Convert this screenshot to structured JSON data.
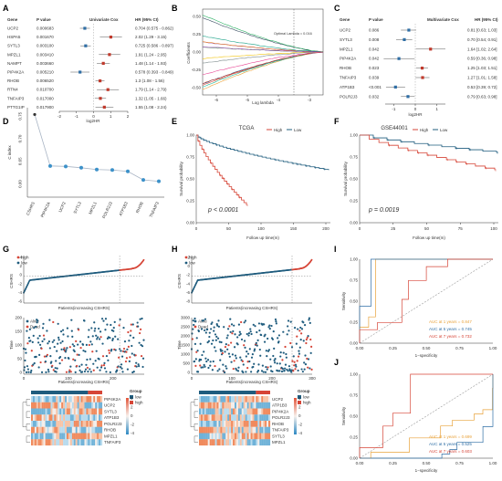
{
  "panels": {
    "A": {
      "letter": "A",
      "headers": [
        "Gene",
        "P value",
        "Univariate Cox",
        "HR (95% CI)"
      ],
      "xlabel": "log2HR",
      "xticks": [
        -2,
        -1,
        0,
        1,
        2
      ],
      "rows": [
        {
          "gene": "UCP2",
          "p": "0.000683",
          "hr": "0.704 (0.575 - 0.862)",
          "est": -0.51,
          "lo": -0.8,
          "hi": -0.21
        },
        {
          "gene": "HSPA5",
          "p": "0.001670",
          "hr": "2.02 (1.29 - 3.15)",
          "est": 1.01,
          "lo": 0.37,
          "hi": 1.66
        },
        {
          "gene": "SYTL3",
          "p": "0.003100",
          "hr": "0.725 (0.586 - 0.897)",
          "est": -0.46,
          "lo": -0.77,
          "hi": -0.16
        },
        {
          "gene": "MPZL1",
          "p": "0.003410",
          "hr": "1.91 (1.24 - 2.95)",
          "est": 0.93,
          "lo": 0.31,
          "hi": 1.56
        },
        {
          "gene": "NAMPT",
          "p": "0.003660",
          "hr": "1.48 (1.14 - 1.93)",
          "est": 0.57,
          "lo": 0.19,
          "hi": 0.95
        },
        {
          "gene": "PIP4K2A",
          "p": "0.005210",
          "hr": "0.578 (0.393 - 0.849)",
          "est": -0.79,
          "lo": -1.35,
          "hi": -0.24
        },
        {
          "gene": "RHOB",
          "p": "0.006520",
          "hr": "1.3 (1.08 - 1.56)",
          "est": 0.38,
          "lo": 0.11,
          "hi": 0.64
        },
        {
          "gene": "RTN4",
          "p": "0.010700",
          "hr": "1.79 (1.14 - 2.79)",
          "est": 0.84,
          "lo": 0.19,
          "hi": 1.48
        },
        {
          "gene": "TNFAIP3",
          "p": "0.017000",
          "hr": "1.32 (1.05 - 1.66)",
          "est": 0.4,
          "lo": 0.07,
          "hi": 0.73
        },
        {
          "gene": "PTTG1IP",
          "p": "0.017900",
          "hr": "1.55 (1.08 - 2.24)",
          "est": 0.63,
          "lo": 0.11,
          "hi": 1.16
        }
      ]
    },
    "B": {
      "letter": "B",
      "ylabel": "Coefficients",
      "xlabel": "Log lambda",
      "xticks": [
        -6,
        -5,
        -4,
        -3
      ],
      "yticks": [
        "0.50",
        "0.25",
        "0.00",
        "-0.25",
        "-0.50"
      ],
      "annotation": "Optimal Lambda = 0.016"
    },
    "C": {
      "letter": "C",
      "headers": [
        "Gene",
        "P value",
        "Multivariate Cox",
        "HR (95% CI)"
      ],
      "xlabel": "log2HR",
      "xticks": [
        -1,
        0,
        1
      ],
      "rows": [
        {
          "gene": "UCP2",
          "p": "0.086",
          "hr": "0.81 [0.63; 1.03]",
          "est": -0.3,
          "lo": -0.67,
          "hi": 0.04
        },
        {
          "gene": "SYTL3",
          "p": "0.008",
          "hr": "0.70 [0.54; 0.91]",
          "est": -0.51,
          "lo": -0.89,
          "hi": -0.14
        },
        {
          "gene": "MPZL1",
          "p": "0.042",
          "hr": "1.64 [1.02; 2.64]",
          "est": 0.71,
          "lo": 0.03,
          "hi": 1.4
        },
        {
          "gene": "PIP4K2A",
          "p": "0.042",
          "hr": "0.59 [0.36; 0.98]",
          "est": -0.76,
          "lo": -1.47,
          "hi": -0.03
        },
        {
          "gene": "RHOB",
          "p": "0.023",
          "hr": "1.25 [1.03; 1.51]",
          "est": 0.32,
          "lo": 0.04,
          "hi": 0.59
        },
        {
          "gene": "TNFAIP3",
          "p": "0.039",
          "hr": "1.27 [1.01; 1.58]",
          "est": 0.34,
          "lo": 0.01,
          "hi": 0.66
        },
        {
          "gene": "ATP1B3",
          "p": "<0.001",
          "hr": "0.53 [0.39; 0.72]",
          "est": -0.92,
          "lo": -1.36,
          "hi": -0.47
        },
        {
          "gene": "POLR2J3",
          "p": "0.032",
          "hr": "0.79 [0.63; 0.98]",
          "est": -0.34,
          "lo": -0.67,
          "hi": -0.03
        }
      ]
    },
    "D": {
      "letter": "D",
      "ylabel": "C index",
      "yticks": [
        "0.60",
        "0.65",
        "0.70",
        "0.75"
      ],
      "ylim": [
        0.58,
        0.77
      ],
      "categories": [
        "CSHRS",
        "PIP4K2A",
        "UCP2",
        "SYTL3",
        "MPZL1",
        "POLR2J3",
        "ATP1B3",
        "RHOB",
        "TNFAIP3"
      ],
      "values": [
        0.755,
        0.641,
        0.64,
        0.637,
        0.633,
        0.632,
        0.629,
        0.61,
        0.607
      ]
    },
    "E": {
      "letter": "E",
      "title": "TCGA",
      "legend": [
        "High",
        "Low"
      ],
      "ylabel": "Survival probability",
      "xlabel": "Follow up time(m)",
      "xticks": [
        0,
        50,
        100,
        150,
        200
      ],
      "yticks": [
        "0.00",
        "0.25",
        "0.50",
        "0.75",
        "1.00"
      ],
      "pvalue": "p < 0.0001"
    },
    "F": {
      "letter": "F",
      "title": "GSE44001",
      "legend": [
        "High",
        "Low"
      ],
      "ylabel": "Survival probability",
      "xlabel": "Follow up time(m)",
      "xticks": [
        0,
        25,
        50,
        75,
        100
      ],
      "yticks": [
        "0.00",
        "0.25",
        "0.50",
        "0.75",
        "1.00"
      ],
      "pvalue": "p = 0.0019"
    },
    "G": {
      "letter": "G",
      "legend_risk": [
        "high",
        "low"
      ],
      "legend_status": [
        "Alive",
        "Dead"
      ],
      "risk_ylabel": "CSHRS",
      "risk_xlabel": "Patients(increasing CSHRS)",
      "risk_yticks": [
        "-6",
        "-4",
        "-2",
        "0",
        "2",
        "4"
      ],
      "xticks": [
        0,
        100,
        200
      ],
      "status_ylabel": "Time",
      "status_xlabel": "Patients(increasing CSHRS)",
      "status_yticks": [
        "0",
        "50",
        "100",
        "150",
        "200"
      ],
      "cutoff": 215,
      "n": 270,
      "heat_genes": [
        "PIP4K2A",
        "UCP2",
        "SYTL3",
        "ATP1B3",
        "POLR2J3",
        "RHOB",
        "MPZL1",
        "TNFAIP3"
      ],
      "heat_legend_title": "Group",
      "heat_legend": [
        "low",
        "high"
      ],
      "scale_ticks": [
        "4",
        "2",
        "0",
        "-2",
        "-4"
      ]
    },
    "H": {
      "letter": "H",
      "legend_risk": [
        "high",
        "low"
      ],
      "legend_status": [
        "Alive",
        "Dead"
      ],
      "risk_ylabel": "CSHRS",
      "risk_xlabel": "Patients(increasing CSHRS)",
      "risk_yticks": [
        "-8",
        "-6",
        "-4",
        "-2",
        "0",
        "2"
      ],
      "xticks": [
        0,
        100,
        200,
        300
      ],
      "status_ylabel": "Time",
      "status_xlabel": "Patients(increasing CSHRS)",
      "status_yticks": [
        "0",
        "500",
        "1000",
        "1500",
        "2000",
        "2500",
        "3000"
      ],
      "cutoff": 250,
      "n": 300,
      "heat_genes": [
        "UCP2",
        "ATP1B3",
        "PIP4K2A",
        "POLR2J3",
        "RHOB",
        "TNFAIP3",
        "SYTL3",
        "MPZL1"
      ],
      "heat_legend_title": "Group",
      "heat_legend": [
        "low",
        "high"
      ],
      "scale_ticks": [
        "4",
        "2",
        "0",
        "-2",
        "-4"
      ]
    },
    "I": {
      "letter": "I",
      "ylabel": "Sensitivity",
      "xlabel": "1−specificity",
      "ticks": [
        "0.00",
        "0.25",
        "0.50",
        "0.75",
        "1.00"
      ],
      "auc": [
        {
          "label": "AUC at 1 years = 0.847",
          "color": "#e8a23a"
        },
        {
          "label": "AUC at 5 years = 0.745",
          "color": "#2f6ea5"
        },
        {
          "label": "AUC at 7 years = 0.732",
          "color": "#d64537"
        }
      ]
    },
    "J": {
      "letter": "J",
      "ylabel": "Sensitivity",
      "xlabel": "1−specificity",
      "ticks": [
        "0.00",
        "0.25",
        "0.50",
        "0.75",
        "1.00"
      ],
      "auc": [
        {
          "label": "AUC at 1 years = 0.699",
          "color": "#e8a23a"
        },
        {
          "label": "AUC at 5 years = 0.525",
          "color": "#2f6ea5"
        },
        {
          "label": "AUC at 7 years = 0.603",
          "color": "#d64537"
        }
      ]
    }
  },
  "colors": {
    "high": "#d64537",
    "low": "#1f5c7e",
    "orange": "#e8a23a",
    "blue": "#2f6ea5"
  }
}
